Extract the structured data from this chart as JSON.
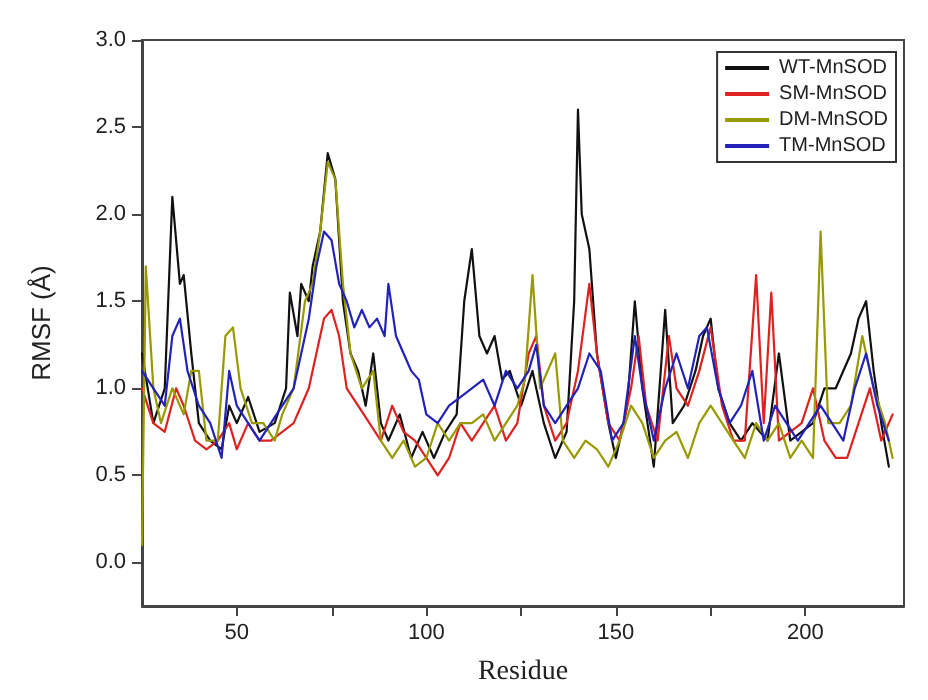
{
  "chart_data": {
    "type": "line",
    "xlabel": "Residue",
    "ylabel": "RMSF (Å)",
    "xlim": [
      25,
      226
    ],
    "ylim": [
      -0.25,
      3.0
    ],
    "xticks": [
      50,
      {
        "value": 75,
        "label": null
      },
      100,
      {
        "value": 125,
        "label": null
      },
      150,
      {
        "value": 175,
        "label": null
      },
      200
    ],
    "yticks": [
      {
        "value": 0,
        "label": "0.0"
      },
      0.5,
      {
        "value": 1,
        "label": "1.0"
      },
      1.5,
      {
        "value": 2,
        "label": "2.0"
      },
      2.5,
      {
        "value": 3,
        "label": "3.0"
      }
    ],
    "grid": false,
    "legend": "top right",
    "marker": "none",
    "line_style": "solid",
    "series": [
      {
        "name": "WT-MnSOD",
        "color": "#111111",
        "x": [
          25,
          28,
          31,
          33,
          35,
          36,
          38,
          40,
          43,
          46,
          48,
          50,
          53,
          56,
          60,
          63,
          64,
          66,
          67,
          69,
          70,
          72,
          74,
          76,
          78,
          80,
          82,
          84,
          86,
          88,
          90,
          93,
          96,
          99,
          102,
          105,
          108,
          110,
          112,
          114,
          116,
          118,
          120,
          122,
          125,
          128,
          131,
          134,
          137,
          139,
          140,
          141,
          143,
          145,
          148,
          150,
          153,
          155,
          157,
          160,
          163,
          165,
          168,
          171,
          173,
          175,
          177,
          180,
          183,
          186,
          190,
          193,
          196,
          199,
          202,
          205,
          208,
          212,
          214,
          216,
          218,
          220,
          222
        ],
        "values": [
          1.2,
          0.8,
          1.0,
          2.1,
          1.6,
          1.65,
          1.2,
          0.8,
          0.7,
          0.65,
          0.9,
          0.8,
          0.95,
          0.75,
          0.8,
          1.0,
          1.55,
          1.3,
          1.6,
          1.5,
          1.7,
          1.9,
          2.35,
          2.2,
          1.5,
          1.2,
          1.1,
          0.9,
          1.2,
          0.8,
          0.7,
          0.85,
          0.6,
          0.75,
          0.6,
          0.75,
          0.85,
          1.5,
          1.8,
          1.3,
          1.2,
          1.3,
          1.05,
          1.1,
          0.9,
          1.1,
          0.8,
          0.6,
          0.75,
          1.5,
          2.6,
          2.0,
          1.8,
          1.2,
          0.8,
          0.6,
          0.9,
          1.5,
          1.0,
          0.55,
          1.45,
          0.8,
          0.9,
          1.1,
          1.3,
          1.4,
          1.0,
          0.8,
          0.7,
          0.8,
          0.7,
          1.2,
          0.7,
          0.75,
          0.8,
          1.0,
          1.0,
          1.2,
          1.4,
          1.5,
          1.1,
          0.8,
          0.55
        ]
      },
      {
        "name": "SM-MnSOD",
        "color": "#dd2222",
        "x": [
          25,
          28,
          31,
          34,
          36,
          39,
          42,
          45,
          48,
          50,
          53,
          56,
          59,
          62,
          65,
          67,
          69,
          71,
          73,
          75,
          77,
          79,
          82,
          85,
          88,
          91,
          94,
          97,
          100,
          103,
          106,
          109,
          112,
          115,
          118,
          121,
          124,
          127,
          129,
          131,
          134,
          137,
          140,
          143,
          145,
          148,
          151,
          154,
          156,
          158,
          161,
          164,
          166,
          169,
          172,
          175,
          178,
          181,
          184,
          187,
          189,
          191,
          193,
          196,
          199,
          202,
          205,
          208,
          211,
          214,
          217,
          220,
          223
        ],
        "values": [
          1.0,
          0.8,
          0.75,
          1.0,
          0.9,
          0.7,
          0.65,
          0.7,
          0.8,
          0.65,
          0.8,
          0.7,
          0.7,
          0.75,
          0.8,
          0.9,
          1.0,
          1.2,
          1.4,
          1.45,
          1.3,
          1.0,
          0.9,
          0.8,
          0.7,
          0.9,
          0.75,
          0.7,
          0.6,
          0.5,
          0.6,
          0.8,
          0.7,
          0.8,
          0.9,
          0.7,
          0.8,
          1.2,
          1.3,
          0.9,
          0.7,
          0.8,
          1.1,
          1.6,
          1.2,
          0.8,
          0.7,
          1.0,
          1.3,
          0.9,
          0.7,
          1.3,
          1.0,
          0.9,
          1.1,
          1.35,
          0.9,
          0.7,
          0.7,
          1.65,
          0.8,
          1.55,
          0.7,
          0.75,
          0.8,
          1.0,
          0.7,
          0.6,
          0.6,
          0.8,
          1.0,
          0.7,
          0.85
        ]
      },
      {
        "name": "DM-MnSOD",
        "color": "#999900",
        "x": [
          25,
          26,
          28,
          30,
          33,
          36,
          38,
          40,
          42,
          45,
          47,
          49,
          51,
          54,
          57,
          60,
          62,
          65,
          68,
          70,
          72,
          74,
          76,
          78,
          80,
          83,
          86,
          88,
          91,
          94,
          97,
          100,
          103,
          106,
          109,
          112,
          115,
          118,
          121,
          124,
          126,
          128,
          130,
          132,
          134,
          136,
          139,
          142,
          145,
          148,
          151,
          154,
          157,
          160,
          163,
          166,
          169,
          172,
          175,
          178,
          181,
          184,
          187,
          190,
          193,
          196,
          199,
          202,
          204,
          206,
          209,
          212,
          215,
          218,
          221,
          223
        ],
        "values": [
          0.1,
          1.7,
          1.0,
          0.8,
          1.0,
          0.85,
          1.1,
          1.1,
          0.7,
          0.7,
          1.3,
          1.35,
          1.0,
          0.8,
          0.8,
          0.7,
          0.85,
          1.0,
          1.5,
          1.6,
          1.9,
          2.3,
          2.2,
          1.6,
          1.2,
          1.0,
          1.1,
          0.7,
          0.6,
          0.7,
          0.55,
          0.6,
          0.8,
          0.7,
          0.8,
          0.8,
          0.85,
          0.7,
          0.8,
          0.9,
          1.05,
          1.65,
          1.0,
          1.1,
          1.2,
          0.7,
          0.6,
          0.7,
          0.65,
          0.55,
          0.7,
          0.9,
          0.8,
          0.6,
          0.7,
          0.75,
          0.6,
          0.8,
          0.9,
          0.8,
          0.7,
          0.6,
          0.8,
          0.7,
          0.8,
          0.6,
          0.7,
          0.6,
          1.9,
          0.8,
          0.8,
          0.9,
          1.3,
          1.0,
          0.8,
          0.6
        ]
      },
      {
        "name": "TM-MnSOD",
        "color": "#2222bb",
        "x": [
          25,
          28,
          31,
          33,
          35,
          37,
          40,
          43,
          46,
          48,
          50,
          53,
          56,
          59,
          62,
          65,
          67,
          69,
          71,
          73,
          75,
          77,
          79,
          81,
          83,
          85,
          87,
          89,
          90,
          92,
          94,
          96,
          98,
          100,
          103,
          106,
          109,
          112,
          115,
          118,
          121,
          124,
          127,
          129,
          131,
          134,
          137,
          140,
          143,
          146,
          149,
          152,
          155,
          157,
          160,
          163,
          166,
          169,
          172,
          174,
          177,
          180,
          183,
          186,
          189,
          192,
          195,
          198,
          201,
          204,
          207,
          210,
          213,
          216,
          219,
          222
        ],
        "values": [
          1.1,
          1.0,
          0.9,
          1.3,
          1.4,
          1.1,
          0.9,
          0.8,
          0.6,
          1.1,
          0.9,
          0.8,
          0.7,
          0.8,
          0.9,
          1.0,
          1.2,
          1.4,
          1.7,
          1.9,
          1.85,
          1.6,
          1.5,
          1.35,
          1.45,
          1.35,
          1.4,
          1.3,
          1.6,
          1.3,
          1.2,
          1.1,
          1.05,
          0.85,
          0.8,
          0.9,
          0.95,
          1.0,
          1.05,
          0.9,
          1.1,
          1.0,
          1.1,
          1.25,
          0.9,
          0.8,
          0.9,
          1.0,
          1.2,
          1.1,
          0.7,
          0.8,
          1.3,
          1.0,
          0.7,
          1.0,
          1.2,
          1.0,
          1.3,
          1.35,
          1.0,
          0.8,
          0.9,
          1.1,
          0.7,
          0.9,
          0.8,
          0.7,
          0.8,
          0.9,
          0.8,
          0.7,
          1.0,
          1.2,
          0.9,
          0.7
        ]
      }
    ]
  }
}
